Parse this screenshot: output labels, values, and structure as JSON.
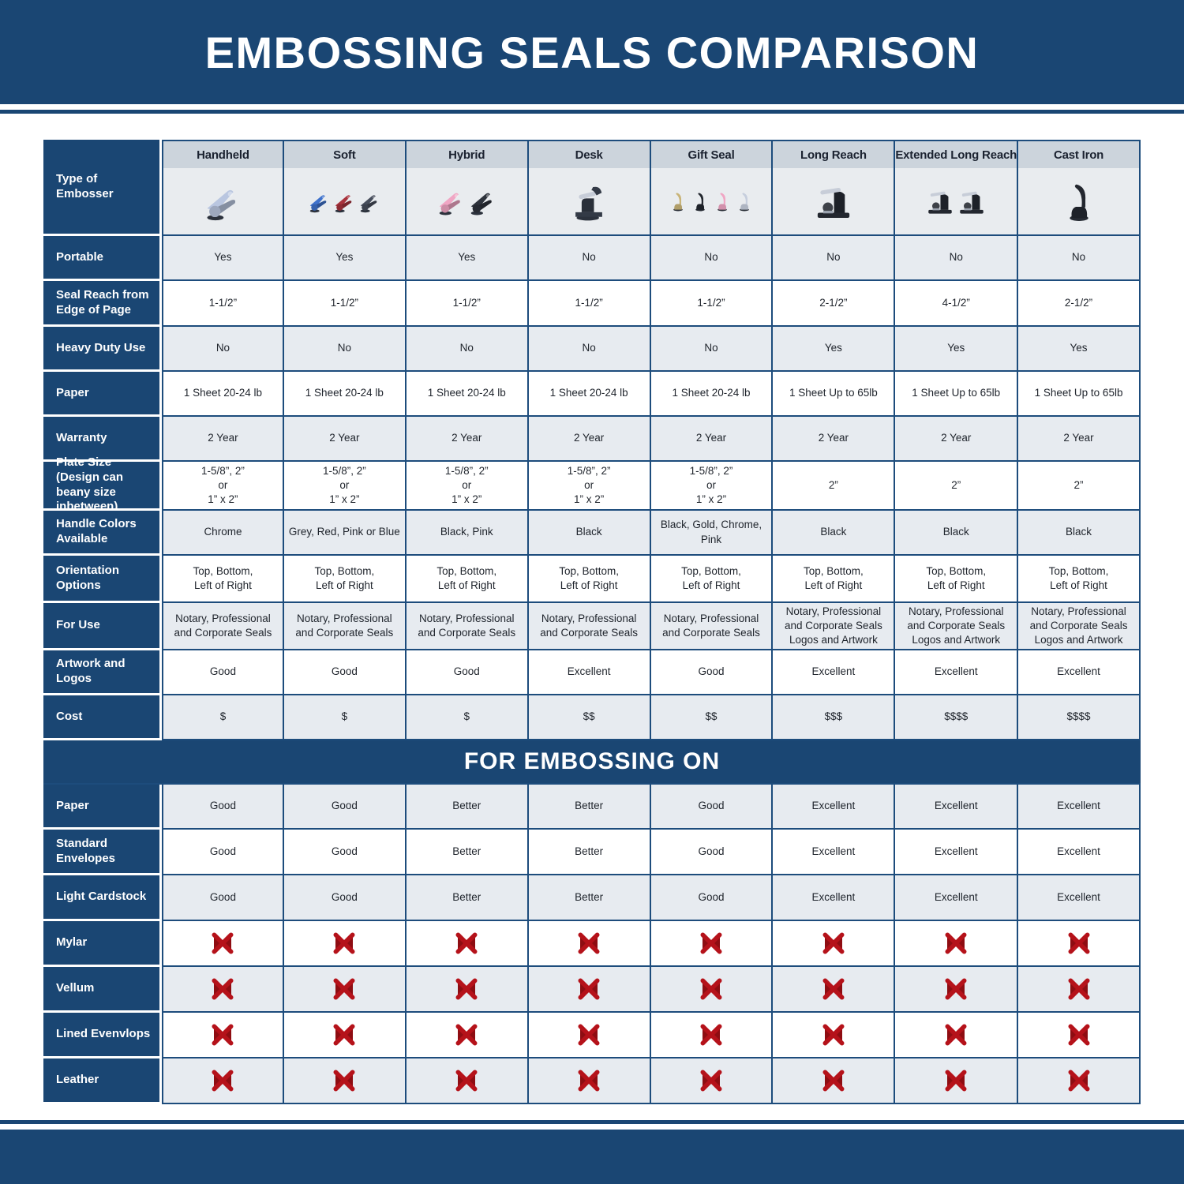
{
  "title": "EMBOSSING SEALS COMPARISON",
  "section2_title": "FOR EMBOSSING ON",
  "row_header_label": "Type of Embosser",
  "colors": {
    "navy": "#1a4673",
    "row_shade": "#e7ebf0",
    "header_band": "#ccd4dc",
    "red_x": "#b5121a",
    "red_x_dark": "#8e0d12"
  },
  "columns": [
    {
      "label": "Handheld",
      "icon": "plier-embosser-icon",
      "icon_colors": [
        "#b9c6e0"
      ]
    },
    {
      "label": "Soft",
      "icon": "plier-embosser-icon",
      "icon_colors": [
        "#3f72cc",
        "#a8323c",
        "#474e5c"
      ]
    },
    {
      "label": "Hybrid",
      "icon": "plier-embosser-icon",
      "icon_colors": [
        "#f0a6c4",
        "#2e333c"
      ]
    },
    {
      "label": "Desk",
      "icon": "desk-embosser-icon",
      "icon_colors": [
        "#333a46"
      ]
    },
    {
      "label": "Gift Seal",
      "icon": "upright-embosser-icon",
      "icon_colors": [
        "#c9b478",
        "#23272f",
        "#f0a6c4",
        "#c6cedd"
      ]
    },
    {
      "label": "Long Reach",
      "icon": "press-embosser-icon",
      "icon_colors": [
        "#23272f"
      ]
    },
    {
      "label": "Extended Long Reach",
      "icon": "press-embosser-icon",
      "icon_colors": [
        "#23272f",
        "#23272f"
      ]
    },
    {
      "label": "Cast Iron",
      "icon": "upright-embosser-icon",
      "icon_colors": [
        "#23272f"
      ]
    }
  ],
  "spec_rows": [
    {
      "label": "Portable",
      "values": [
        "Yes",
        "Yes",
        "Yes",
        "No",
        "No",
        "No",
        "No",
        "No"
      ]
    },
    {
      "label": "Seal Reach from Edge of Page",
      "values": [
        "1-1/2”",
        "1-1/2”",
        "1-1/2”",
        "1-1/2”",
        "1-1/2”",
        "2-1/2”",
        "4-1/2”",
        "2-1/2”"
      ]
    },
    {
      "label": "Heavy Duty Use",
      "values": [
        "No",
        "No",
        "No",
        "No",
        "No",
        "Yes",
        "Yes",
        "Yes"
      ]
    },
    {
      "label": "Paper",
      "values": [
        "1 Sheet 20-24 lb",
        "1 Sheet 20-24 lb",
        "1 Sheet 20-24 lb",
        "1 Sheet 20-24 lb",
        "1 Sheet 20-24 lb",
        "1 Sheet Up to 65lb",
        "1 Sheet Up to 65lb",
        "1 Sheet Up to 65lb"
      ]
    },
    {
      "label": "Warranty",
      "values": [
        "2 Year",
        "2 Year",
        "2 Year",
        "2 Year",
        "2 Year",
        "2 Year",
        "2 Year",
        "2 Year"
      ]
    },
    {
      "label": "Plate Size (Design can beany size inbetween)",
      "values": [
        "1-5/8”, 2”\nor\n1” x 2”",
        "1-5/8”, 2”\nor\n1” x 2”",
        "1-5/8”, 2”\nor\n1” x 2”",
        "1-5/8”, 2”\nor\n1” x 2”",
        "1-5/8”, 2”\nor\n1” x 2”",
        "2”",
        "2”",
        "2”"
      ]
    },
    {
      "label": "Handle Colors Available",
      "values": [
        "Chrome",
        "Grey, Red, Pink or Blue",
        "Black, Pink",
        "Black",
        "Black, Gold, Chrome, Pink",
        "Black",
        "Black",
        "Black"
      ]
    },
    {
      "label": "Orientation Options",
      "values": [
        "Top, Bottom,\nLeft of Right",
        "Top, Bottom,\nLeft of Right",
        "Top, Bottom,\nLeft of Right",
        "Top, Bottom,\nLeft of Right",
        "Top, Bottom,\nLeft of Right",
        "Top, Bottom,\nLeft of Right",
        "Top, Bottom,\nLeft of Right",
        "Top, Bottom,\nLeft of Right"
      ]
    },
    {
      "label": "For Use",
      "values": [
        "Notary, Professional\nand Corporate Seals",
        "Notary, Professional\nand Corporate Seals",
        "Notary, Professional\nand Corporate Seals",
        "Notary, Professional\nand Corporate Seals",
        "Notary, Professional\nand Corporate Seals",
        "Notary, Professional\nand Corporate Seals\nLogos and Artwork",
        "Notary, Professional\nand Corporate Seals\nLogos and Artwork",
        "Notary, Professional\nand Corporate Seals\nLogos and Artwork"
      ]
    },
    {
      "label": "Artwork and Logos",
      "values": [
        "Good",
        "Good",
        "Good",
        "Excellent",
        "Good",
        "Excellent",
        "Excellent",
        "Excellent"
      ]
    },
    {
      "label": "Cost",
      "values": [
        "$",
        "$",
        "$",
        "$$",
        "$$",
        "$$$",
        "$$$$",
        "$$$$"
      ]
    }
  ],
  "embossing_rows": [
    {
      "label": "Paper",
      "values": [
        "Good",
        "Good",
        "Better",
        "Better",
        "Good",
        "Excellent",
        "Excellent",
        "Excellent"
      ]
    },
    {
      "label": "Standard Envelopes",
      "values": [
        "Good",
        "Good",
        "Better",
        "Better",
        "Good",
        "Excellent",
        "Excellent",
        "Excellent"
      ]
    },
    {
      "label": "Light Cardstock",
      "values": [
        "Good",
        "Good",
        "Better",
        "Better",
        "Good",
        "Excellent",
        "Excellent",
        "Excellent"
      ]
    },
    {
      "label": "Mylar",
      "values": [
        "X",
        "X",
        "X",
        "X",
        "X",
        "X",
        "X",
        "X"
      ]
    },
    {
      "label": "Vellum",
      "values": [
        "X",
        "X",
        "X",
        "X",
        "X",
        "X",
        "X",
        "X"
      ]
    },
    {
      "label": "Lined Evenvlops",
      "values": [
        "X",
        "X",
        "X",
        "X",
        "X",
        "X",
        "X",
        "X"
      ]
    },
    {
      "label": "Leather",
      "values": [
        "X",
        "X",
        "X",
        "X",
        "X",
        "X",
        "X",
        "X"
      ]
    }
  ]
}
